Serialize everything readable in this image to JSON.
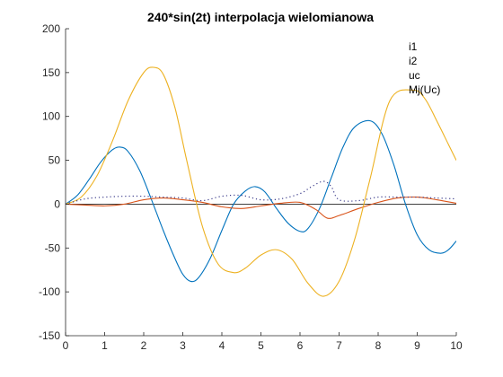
{
  "chart_data": {
    "type": "line",
    "title": "240*sin(2t) interpolacja wielomianowa",
    "xlabel": "",
    "ylabel": "",
    "xlim": [
      0,
      10
    ],
    "ylim": [
      -150,
      200
    ],
    "xticks": [
      0,
      1,
      2,
      3,
      4,
      5,
      6,
      7,
      8,
      9,
      10
    ],
    "yticks": [
      -150,
      -100,
      -50,
      0,
      50,
      100,
      150,
      200
    ],
    "grid": false,
    "legend_position": "top-right",
    "zero_line": true,
    "series": [
      {
        "name": "i1",
        "color": "#0072BD",
        "style": "solid",
        "x": [
          0,
          0.3,
          0.6,
          0.9,
          1.2,
          1.4,
          1.6,
          1.9,
          2.2,
          2.5,
          2.8,
          3.0,
          3.2,
          3.4,
          3.7,
          4.0,
          4.3,
          4.6,
          4.85,
          5.1,
          5.4,
          5.7,
          6.0,
          6.2,
          6.5,
          6.8,
          7.1,
          7.4,
          7.8,
          8.1,
          8.4,
          8.7,
          9.0,
          9.3,
          9.6,
          9.8,
          10.0
        ],
        "y": [
          0,
          10,
          28,
          48,
          62,
          65,
          60,
          38,
          5,
          -30,
          -62,
          -80,
          -88,
          -84,
          -62,
          -30,
          0,
          15,
          20,
          14,
          -5,
          -22,
          -31,
          -28,
          -5,
          30,
          65,
          88,
          95,
          80,
          45,
          0,
          -35,
          -52,
          -56,
          -52,
          -42
        ]
      },
      {
        "name": "i2",
        "color": "#D95319",
        "style": "solid",
        "x": [
          0,
          0.5,
          1.0,
          1.5,
          2.0,
          2.5,
          3.0,
          3.5,
          4.0,
          4.5,
          5.0,
          5.5,
          6.0,
          6.4,
          6.7,
          7.0,
          7.5,
          8.0,
          8.5,
          9.0,
          9.5,
          10.0
        ],
        "y": [
          0,
          -1,
          -2,
          0,
          5,
          7,
          5,
          2,
          -3,
          -5,
          -2,
          1,
          2,
          -6,
          -16,
          -13,
          -5,
          2,
          7,
          8,
          5,
          1
        ]
      },
      {
        "name": "uc",
        "color": "#EDB120",
        "style": "solid",
        "x": [
          0,
          0.4,
          0.8,
          1.2,
          1.6,
          2.0,
          2.25,
          2.5,
          2.8,
          3.1,
          3.5,
          3.9,
          4.3,
          4.6,
          5.0,
          5.4,
          5.8,
          6.2,
          6.6,
          7.0,
          7.4,
          7.8,
          8.3,
          8.9,
          9.2,
          9.5,
          9.8,
          10.0
        ],
        "y": [
          0,
          8,
          32,
          72,
          118,
          150,
          156,
          148,
          110,
          50,
          -25,
          -68,
          -78,
          -73,
          -58,
          -52,
          -63,
          -90,
          -105,
          -88,
          -40,
          30,
          118,
          130,
          120,
          95,
          68,
          50
        ]
      },
      {
        "name": "Mj(Uc)",
        "color": "#3A3A8A",
        "style": "dotted",
        "x": [
          0,
          0.5,
          1.0,
          1.5,
          2.0,
          2.5,
          3.0,
          3.5,
          4.0,
          4.5,
          5.0,
          5.5,
          6.0,
          6.3,
          6.6,
          6.8,
          7.0,
          7.5,
          8.0,
          8.5,
          9.0,
          9.5,
          10.0
        ],
        "y": [
          0,
          6,
          8,
          9,
          9,
          8,
          7,
          4,
          9,
          10,
          5,
          6,
          12,
          20,
          26,
          20,
          5,
          4,
          8,
          8,
          8,
          7,
          6
        ]
      }
    ]
  }
}
